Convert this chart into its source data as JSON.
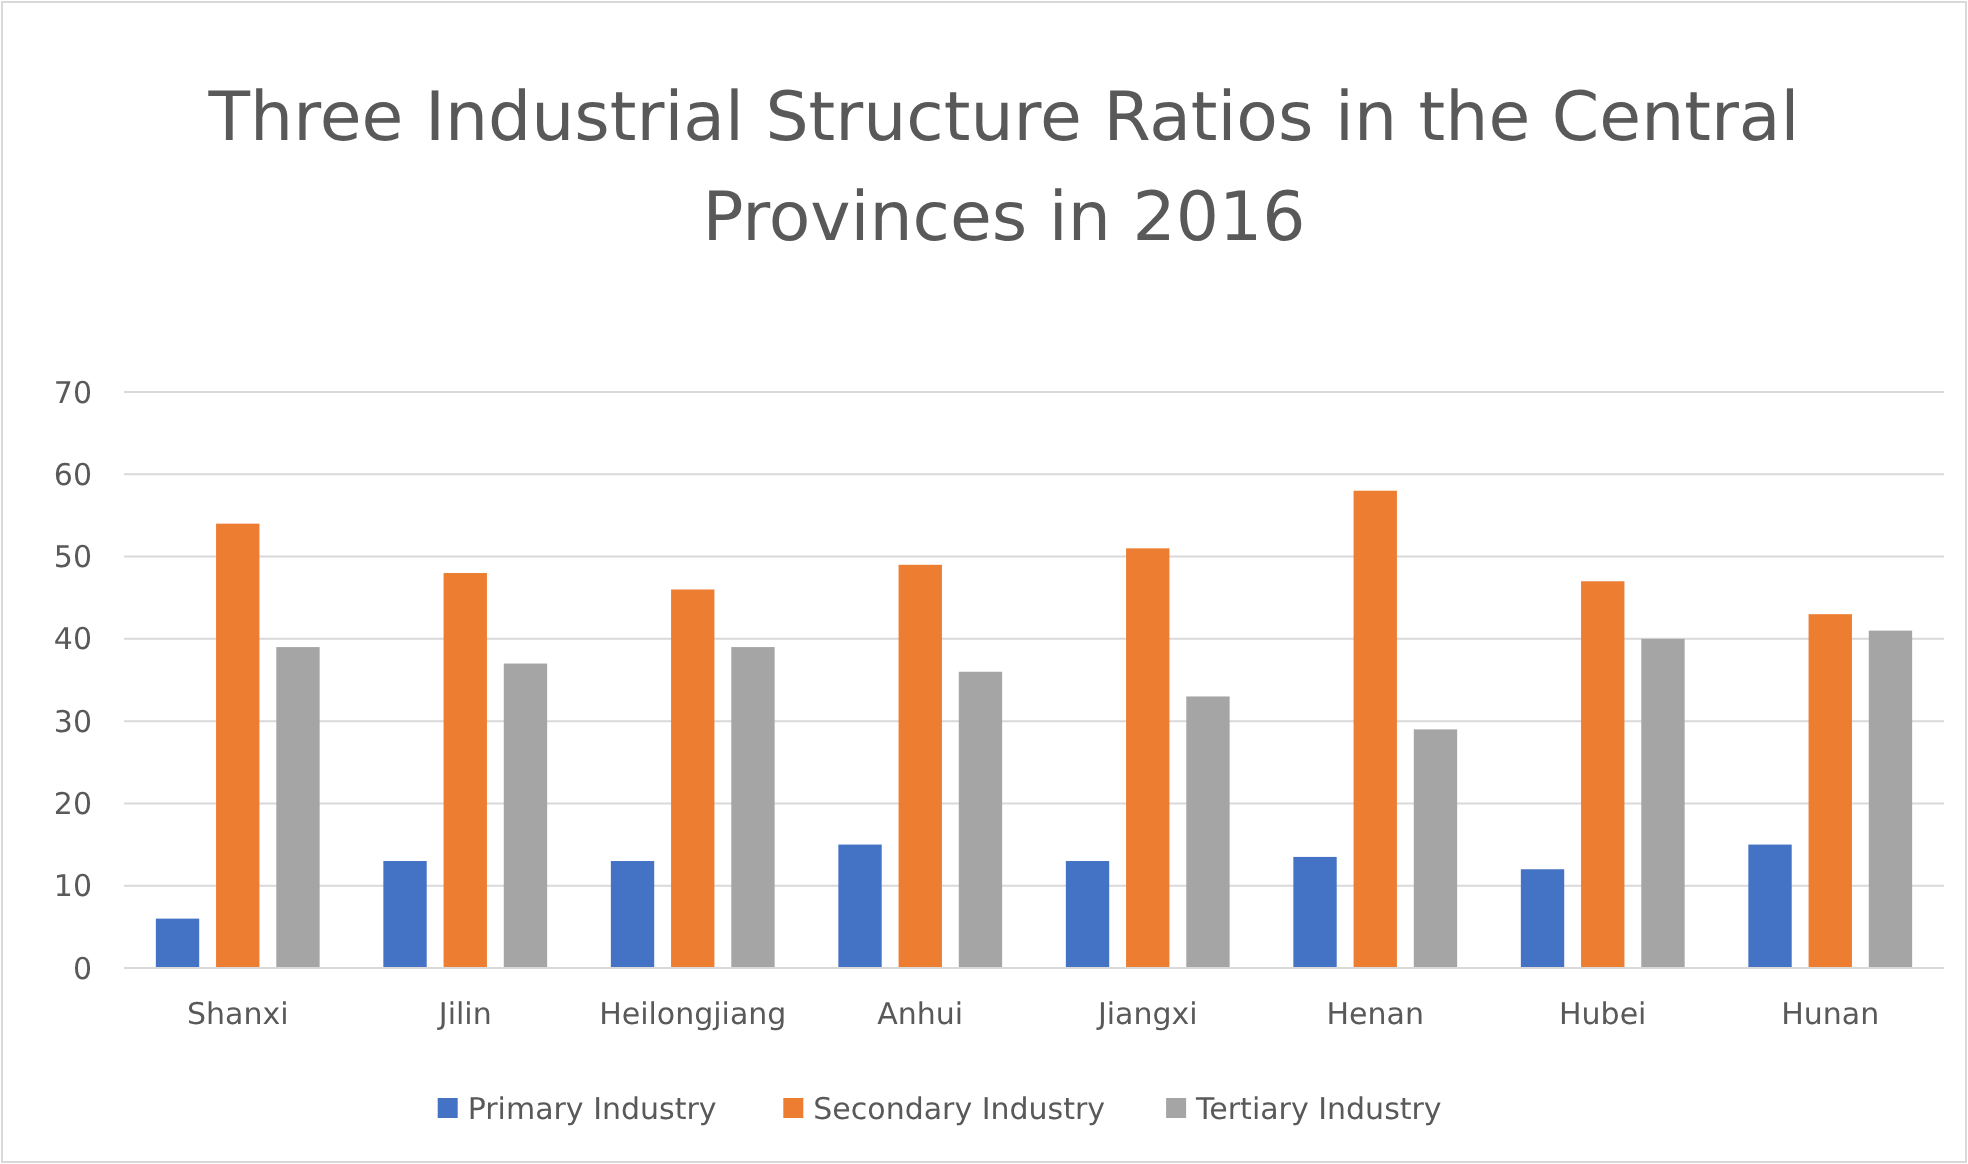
{
  "chart_data": {
    "type": "bar",
    "title": "Three Industrial Structure Ratios in the Central Provinces in 2016",
    "categories": [
      "Shanxi",
      "Jilin",
      "Heilongjiang",
      "Anhui",
      "Jiangxi",
      "Henan",
      "Hubei",
      "Hunan"
    ],
    "series": [
      {
        "name": "Primary Industry",
        "color": "#4472c4",
        "values": [
          6,
          13,
          13,
          15,
          13,
          13.5,
          12,
          15
        ]
      },
      {
        "name": "Secondary Industry",
        "color": "#ed7d31",
        "values": [
          54,
          48,
          46,
          49,
          51,
          58,
          47,
          43
        ]
      },
      {
        "name": "Tertiary Industry",
        "color": "#a5a5a5",
        "values": [
          39,
          37,
          39,
          36,
          33,
          29,
          40,
          41
        ]
      }
    ],
    "ylim": [
      0,
      70
    ],
    "yticks": [
      0,
      10,
      20,
      30,
      40,
      50,
      60,
      70
    ],
    "grid": "y",
    "legend": "bottom"
  }
}
